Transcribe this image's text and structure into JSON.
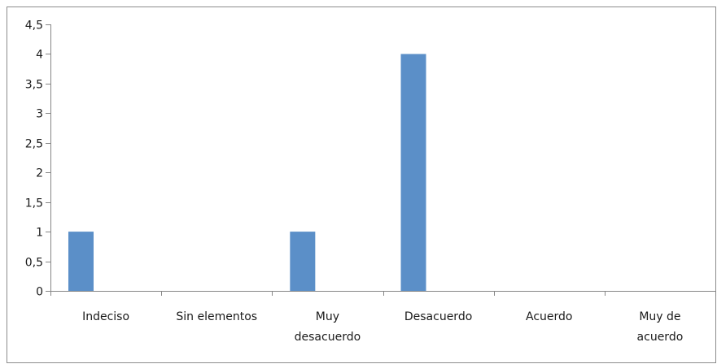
{
  "chart_data": {
    "type": "bar",
    "categories": [
      [
        "Indeciso"
      ],
      [
        "Sin elementos"
      ],
      [
        "Muy",
        "desacuerdo"
      ],
      [
        "Desacuerdo"
      ],
      [
        "Acuerdo"
      ],
      [
        "Muy de",
        "acuerdo"
      ]
    ],
    "values": [
      1,
      0,
      1,
      4,
      0,
      0
    ],
    "ylim": [
      0,
      4.5
    ],
    "y_ticks": [
      "0",
      "0,5",
      "1",
      "1,5",
      "2",
      "2,5",
      "3",
      "3,5",
      "4",
      "4,5"
    ],
    "grid": false,
    "legend": "none",
    "bar_color": "#5b8fc8",
    "axis_color": "#868686",
    "border_color": "#8c8c8c"
  }
}
